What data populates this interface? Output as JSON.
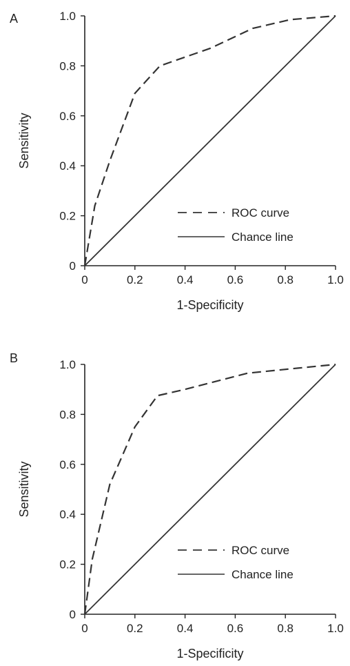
{
  "chart_data": [
    {
      "type": "line",
      "panel_label": "A",
      "xlabel": "1-Specificity",
      "ylabel": "Sensitivity",
      "xlim": [
        0,
        1
      ],
      "ylim": [
        0,
        1
      ],
      "x_ticks": [
        "0",
        "0.2",
        "0.4",
        "0.6",
        "0.8",
        "1.0"
      ],
      "y_ticks": [
        "0",
        "0.2",
        "0.4",
        "0.6",
        "0.8",
        "1.0"
      ],
      "grid": false,
      "legend_position": "lower-right",
      "series": [
        {
          "name": "ROC curve",
          "style": "dashed",
          "color": "#333333",
          "x": [
            0,
            0.04,
            0.1,
            0.2,
            0.3,
            0.5,
            0.67,
            0.82,
            1.0
          ],
          "y": [
            0,
            0.24,
            0.42,
            0.69,
            0.8,
            0.87,
            0.95,
            0.985,
            1.0
          ]
        },
        {
          "name": "Chance line",
          "style": "solid",
          "color": "#333333",
          "x": [
            0,
            1
          ],
          "y": [
            0,
            1
          ]
        }
      ]
    },
    {
      "type": "line",
      "panel_label": "B",
      "xlabel": "1-Specificity",
      "ylabel": "Sensitivity",
      "xlim": [
        0,
        1
      ],
      "ylim": [
        0,
        1
      ],
      "x_ticks": [
        "0",
        "0.2",
        "0.4",
        "0.6",
        "0.8",
        "1.0"
      ],
      "y_ticks": [
        "0",
        "0.2",
        "0.4",
        "0.6",
        "0.8",
        "1.0"
      ],
      "grid": false,
      "legend_position": "lower-right",
      "series": [
        {
          "name": "ROC curve",
          "style": "dashed",
          "color": "#333333",
          "x": [
            0,
            0.03,
            0.1,
            0.2,
            0.29,
            0.4,
            0.65,
            0.85,
            1.0
          ],
          "y": [
            0,
            0.22,
            0.52,
            0.75,
            0.875,
            0.9,
            0.965,
            0.985,
            1.0
          ]
        },
        {
          "name": "Chance line",
          "style": "solid",
          "color": "#333333",
          "x": [
            0,
            1
          ],
          "y": [
            0,
            1
          ]
        }
      ]
    }
  ]
}
